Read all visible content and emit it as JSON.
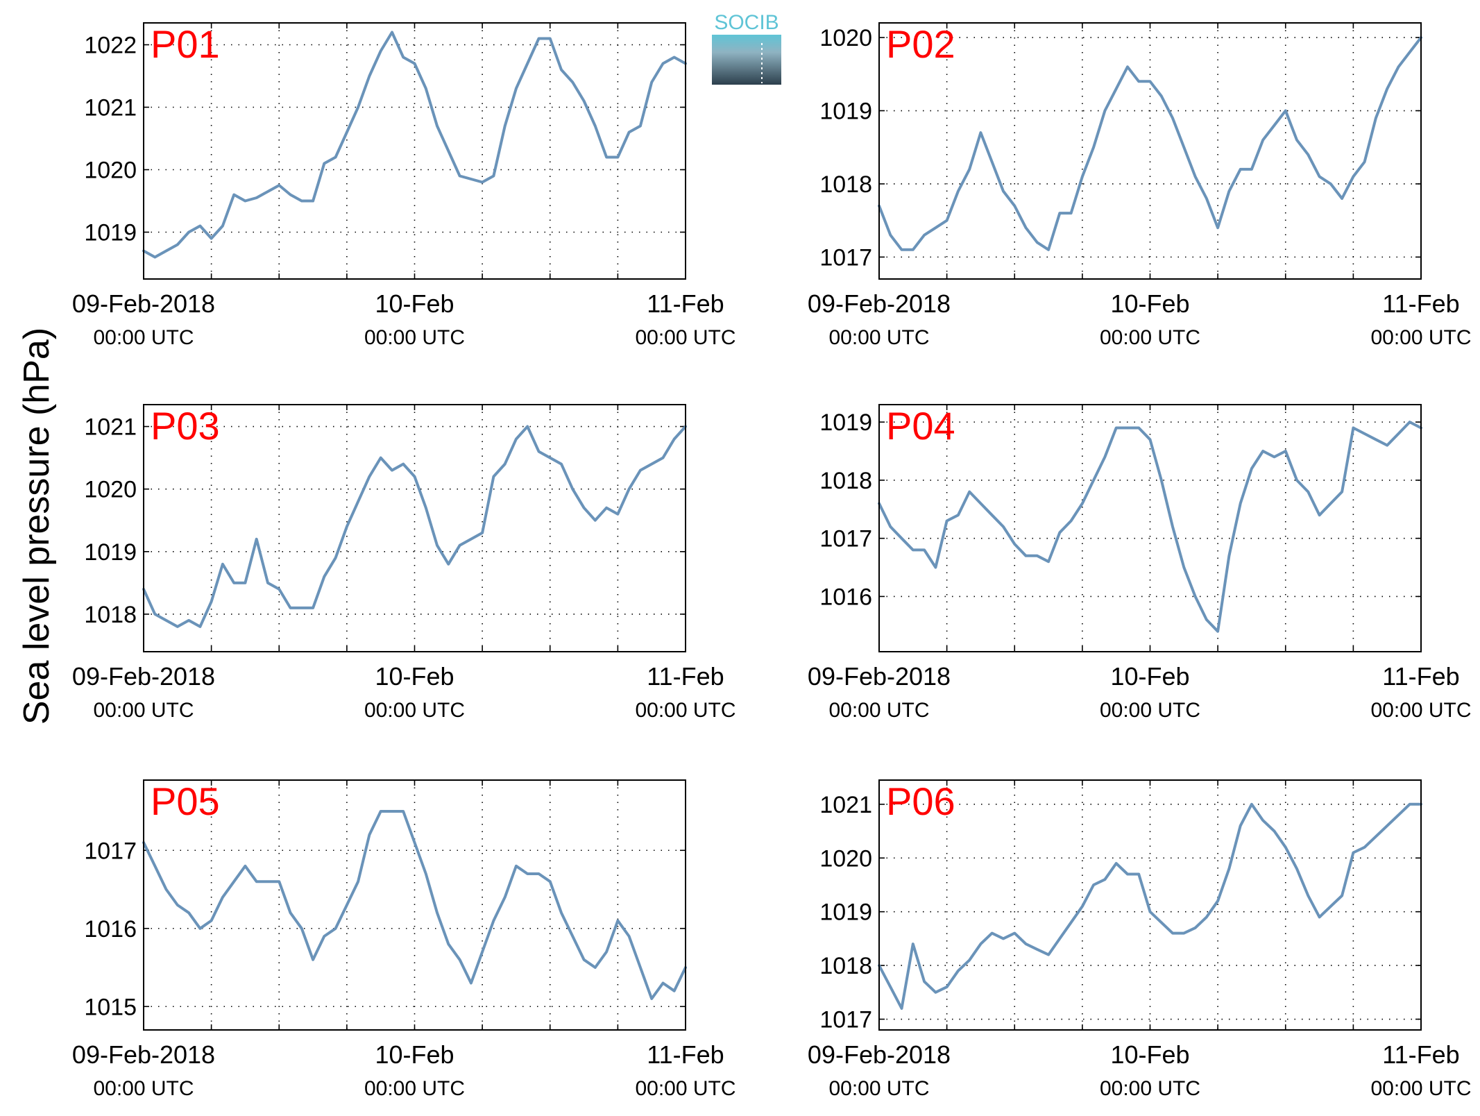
{
  "figure": {
    "ylabel": "Sea level pressure (hPa)",
    "logo_text": "SOCIB",
    "line_color": "#6a93b9",
    "label_color": "#ff0000"
  },
  "chart_data": [
    {
      "type": "line",
      "title": "P01",
      "xticks": [
        {
          "date": "09-Feb-2018",
          "time": "00:00 UTC"
        },
        {
          "date": "10-Feb",
          "time": "00:00 UTC"
        },
        {
          "date": "11-Feb",
          "time": "00:00 UTC"
        }
      ],
      "xlim": [
        0,
        48
      ],
      "ylim": [
        1018.25,
        1022.35
      ],
      "yticks": [
        1019,
        1020,
        1021,
        1022
      ],
      "grid": true,
      "x": [
        0,
        1,
        2,
        3,
        4,
        5,
        6,
        7,
        8,
        9,
        10,
        11,
        12,
        13,
        14,
        15,
        16,
        17,
        18,
        19,
        20,
        21,
        22,
        23,
        24,
        25,
        26,
        27,
        28,
        29,
        30,
        31,
        32,
        33,
        34,
        35,
        36,
        37,
        38,
        39,
        40,
        41,
        42,
        43,
        44,
        45,
        46,
        47,
        48
      ],
      "y": [
        1018.7,
        1018.6,
        1018.7,
        1018.8,
        1019.0,
        1019.1,
        1018.9,
        1019.1,
        1019.6,
        1019.5,
        1019.55,
        1019.65,
        1019.75,
        1019.6,
        1019.5,
        1019.5,
        1020.1,
        1020.2,
        1020.6,
        1021.0,
        1021.5,
        1021.9,
        1022.2,
        1021.8,
        1021.7,
        1021.3,
        1020.7,
        1020.3,
        1019.9,
        1019.85,
        1019.8,
        1019.9,
        1020.7,
        1021.3,
        1021.7,
        1022.1,
        1022.1,
        1021.6,
        1021.4,
        1021.1,
        1020.7,
        1020.2,
        1020.2,
        1020.6,
        1020.7,
        1021.4,
        1021.7,
        1021.8,
        1021.7
      ]
    },
    {
      "type": "line",
      "title": "P02",
      "xticks": [
        {
          "date": "09-Feb-2018",
          "time": "00:00 UTC"
        },
        {
          "date": "10-Feb",
          "time": "00:00 UTC"
        },
        {
          "date": "11-Feb",
          "time": "00:00 UTC"
        }
      ],
      "xlim": [
        0,
        48
      ],
      "ylim": [
        1016.7,
        1020.2
      ],
      "yticks": [
        1017,
        1018,
        1019,
        1020
      ],
      "grid": true,
      "x": [
        0,
        1,
        2,
        3,
        4,
        5,
        6,
        7,
        8,
        9,
        10,
        11,
        12,
        13,
        14,
        15,
        16,
        17,
        18,
        19,
        20,
        21,
        22,
        23,
        24,
        25,
        26,
        27,
        28,
        29,
        30,
        31,
        32,
        33,
        34,
        35,
        36,
        37,
        38,
        39,
        40,
        41,
        42,
        43,
        44,
        45,
        46,
        47,
        48
      ],
      "y": [
        1017.7,
        1017.3,
        1017.1,
        1017.1,
        1017.3,
        1017.4,
        1017.5,
        1017.9,
        1018.2,
        1018.7,
        1018.3,
        1017.9,
        1017.7,
        1017.4,
        1017.2,
        1017.1,
        1017.6,
        1017.6,
        1018.1,
        1018.5,
        1019.0,
        1019.3,
        1019.6,
        1019.4,
        1019.4,
        1019.2,
        1018.9,
        1018.5,
        1018.1,
        1017.8,
        1017.4,
        1017.9,
        1018.2,
        1018.2,
        1018.6,
        1018.8,
        1019.0,
        1018.6,
        1018.4,
        1018.1,
        1018.0,
        1017.8,
        1018.1,
        1018.3,
        1018.9,
        1019.3,
        1019.6,
        1019.8,
        1020.0
      ]
    },
    {
      "type": "line",
      "title": "P03",
      "xticks": [
        {
          "date": "09-Feb-2018",
          "time": "00:00 UTC"
        },
        {
          "date": "10-Feb",
          "time": "00:00 UTC"
        },
        {
          "date": "11-Feb",
          "time": "00:00 UTC"
        }
      ],
      "xlim": [
        0,
        48
      ],
      "ylim": [
        1017.4,
        1021.35
      ],
      "yticks": [
        1018,
        1019,
        1020,
        1021
      ],
      "grid": true,
      "x": [
        0,
        1,
        2,
        3,
        4,
        5,
        6,
        7,
        8,
        9,
        10,
        11,
        12,
        13,
        14,
        15,
        16,
        17,
        18,
        19,
        20,
        21,
        22,
        23,
        24,
        25,
        26,
        27,
        28,
        29,
        30,
        31,
        32,
        33,
        34,
        35,
        36,
        37,
        38,
        39,
        40,
        41,
        42,
        43,
        44,
        45,
        46,
        47,
        48
      ],
      "y": [
        1018.4,
        1018.0,
        1017.9,
        1017.8,
        1017.9,
        1017.8,
        1018.2,
        1018.8,
        1018.5,
        1018.5,
        1019.2,
        1018.5,
        1018.4,
        1018.1,
        1018.1,
        1018.1,
        1018.6,
        1018.9,
        1019.4,
        1019.8,
        1020.2,
        1020.5,
        1020.3,
        1020.4,
        1020.2,
        1019.7,
        1019.1,
        1018.8,
        1019.1,
        1019.2,
        1019.3,
        1020.2,
        1020.4,
        1020.8,
        1021.0,
        1020.6,
        1020.5,
        1020.4,
        1020.0,
        1019.7,
        1019.5,
        1019.7,
        1019.6,
        1020.0,
        1020.3,
        1020.4,
        1020.5,
        1020.8,
        1021.0
      ]
    },
    {
      "type": "line",
      "title": "P04",
      "xticks": [
        {
          "date": "09-Feb-2018",
          "time": "00:00 UTC"
        },
        {
          "date": "10-Feb",
          "time": "00:00 UTC"
        },
        {
          "date": "11-Feb",
          "time": "00:00 UTC"
        }
      ],
      "xlim": [
        0,
        48
      ],
      "ylim": [
        1015.05,
        1019.3
      ],
      "yticks": [
        1016,
        1017,
        1018,
        1019
      ],
      "grid": true,
      "x": [
        0,
        1,
        2,
        3,
        4,
        5,
        6,
        7,
        8,
        9,
        10,
        11,
        12,
        13,
        14,
        15,
        16,
        17,
        18,
        19,
        20,
        21,
        22,
        23,
        24,
        25,
        26,
        27,
        28,
        29,
        30,
        31,
        32,
        33,
        34,
        35,
        36,
        37,
        38,
        39,
        40,
        41,
        42,
        43,
        44,
        45,
        46,
        47,
        48
      ],
      "y": [
        1017.6,
        1017.2,
        1017.0,
        1016.8,
        1016.8,
        1016.5,
        1017.3,
        1017.4,
        1017.8,
        1017.6,
        1017.4,
        1017.2,
        1016.9,
        1016.7,
        1016.7,
        1016.6,
        1017.1,
        1017.3,
        1017.6,
        1018.0,
        1018.4,
        1018.9,
        1018.9,
        1018.9,
        1018.7,
        1018.0,
        1017.2,
        1016.5,
        1016.0,
        1015.6,
        1015.4,
        1016.7,
        1017.6,
        1018.2,
        1018.5,
        1018.4,
        1018.5,
        1018.0,
        1017.8,
        1017.4,
        1017.6,
        1017.8,
        1018.9,
        1018.8,
        1018.7,
        1018.6,
        1018.8,
        1019.0,
        1018.9
      ]
    },
    {
      "type": "line",
      "title": "P05",
      "xticks": [
        {
          "date": "09-Feb-2018",
          "time": "00:00 UTC"
        },
        {
          "date": "10-Feb",
          "time": "00:00 UTC"
        },
        {
          "date": "11-Feb",
          "time": "00:00 UTC"
        }
      ],
      "xlim": [
        0,
        48
      ],
      "ylim": [
        1014.7,
        1017.9
      ],
      "yticks": [
        1015,
        1016,
        1017
      ],
      "grid": true,
      "x": [
        0,
        1,
        2,
        3,
        4,
        5,
        6,
        7,
        8,
        9,
        10,
        11,
        12,
        13,
        14,
        15,
        16,
        17,
        18,
        19,
        20,
        21,
        22,
        23,
        24,
        25,
        26,
        27,
        28,
        29,
        30,
        31,
        32,
        33,
        34,
        35,
        36,
        37,
        38,
        39,
        40,
        41,
        42,
        43,
        44,
        45,
        46,
        47,
        48
      ],
      "y": [
        1017.1,
        1016.8,
        1016.5,
        1016.3,
        1016.2,
        1016.0,
        1016.1,
        1016.4,
        1016.6,
        1016.8,
        1016.6,
        1016.6,
        1016.6,
        1016.2,
        1016.0,
        1015.6,
        1015.9,
        1016.0,
        1016.3,
        1016.6,
        1017.2,
        1017.5,
        1017.5,
        1017.5,
        1017.1,
        1016.7,
        1016.2,
        1015.8,
        1015.6,
        1015.3,
        1015.7,
        1016.1,
        1016.4,
        1016.8,
        1016.7,
        1016.7,
        1016.6,
        1016.2,
        1015.9,
        1015.6,
        1015.5,
        1015.7,
        1016.1,
        1015.9,
        1015.5,
        1015.1,
        1015.3,
        1015.2,
        1015.5
      ]
    },
    {
      "type": "line",
      "title": "P06",
      "xticks": [
        {
          "date": "09-Feb-2018",
          "time": "00:00 UTC"
        },
        {
          "date": "10-Feb",
          "time": "00:00 UTC"
        },
        {
          "date": "11-Feb",
          "time": "00:00 UTC"
        }
      ],
      "xlim": [
        0,
        48
      ],
      "ylim": [
        1016.8,
        1021.45
      ],
      "yticks": [
        1017,
        1018,
        1019,
        1020,
        1021
      ],
      "grid": true,
      "x": [
        0,
        1,
        2,
        3,
        4,
        5,
        6,
        7,
        8,
        9,
        10,
        11,
        12,
        13,
        14,
        15,
        16,
        17,
        18,
        19,
        20,
        21,
        22,
        23,
        24,
        25,
        26,
        27,
        28,
        29,
        30,
        31,
        32,
        33,
        34,
        35,
        36,
        37,
        38,
        39,
        40,
        41,
        42,
        43,
        44,
        45,
        46,
        47,
        48
      ],
      "y": [
        1018.0,
        1017.6,
        1017.2,
        1018.4,
        1017.7,
        1017.5,
        1017.6,
        1017.9,
        1018.1,
        1018.4,
        1018.6,
        1018.5,
        1018.6,
        1018.4,
        1018.3,
        1018.2,
        1018.5,
        1018.8,
        1019.1,
        1019.5,
        1019.6,
        1019.9,
        1019.7,
        1019.7,
        1019.0,
        1018.8,
        1018.6,
        1018.6,
        1018.7,
        1018.9,
        1019.2,
        1019.8,
        1020.6,
        1021.0,
        1020.7,
        1020.5,
        1020.2,
        1019.8,
        1019.3,
        1018.9,
        1019.1,
        1019.3,
        1020.1,
        1020.2,
        1020.4,
        1020.6,
        1020.8,
        1021.0,
        1021.0
      ]
    }
  ]
}
